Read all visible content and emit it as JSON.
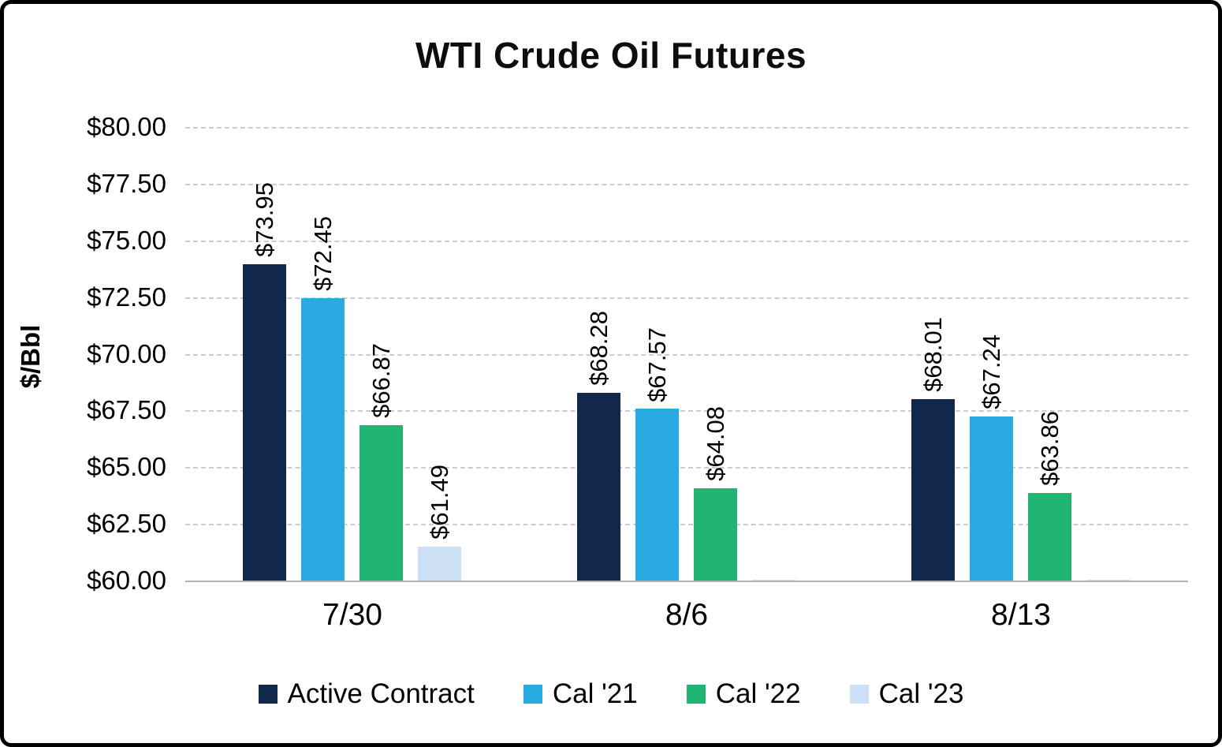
{
  "chart_data": {
    "type": "bar",
    "title": "WTI Crude Oil Futures",
    "xlabel": "",
    "ylabel": "$/Bbl",
    "ylim": [
      60,
      80
    ],
    "ytick_step": 2.5,
    "ytick_labels": [
      "$60.00",
      "$62.50",
      "$65.00",
      "$67.50",
      "$70.00",
      "$72.50",
      "$75.00",
      "$77.50",
      "$80.00"
    ],
    "grid": "dashed-horizontal",
    "legend_position": "bottom",
    "categories": [
      "7/30",
      "8/6",
      "8/13"
    ],
    "series": [
      {
        "name": "Active Contract",
        "color": "#12284B",
        "values": [
          73.95,
          68.28,
          68.01
        ],
        "labels": [
          "$73.95",
          "$68.28",
          "$68.01"
        ]
      },
      {
        "name": "Cal '21",
        "color": "#29ABE2",
        "values": [
          72.45,
          67.57,
          67.24
        ],
        "labels": [
          "$72.45",
          "$67.57",
          "$67.24"
        ]
      },
      {
        "name": "Cal '22",
        "color": "#21B573",
        "values": [
          66.87,
          64.08,
          63.86
        ],
        "labels": [
          "$66.87",
          "$64.08",
          "$63.86"
        ]
      },
      {
        "name": "Cal '23",
        "color": "#CEE0F5",
        "values": [
          61.49,
          60.05,
          60.05
        ],
        "labels": [
          "$61.49",
          "",
          ""
        ]
      }
    ]
  }
}
